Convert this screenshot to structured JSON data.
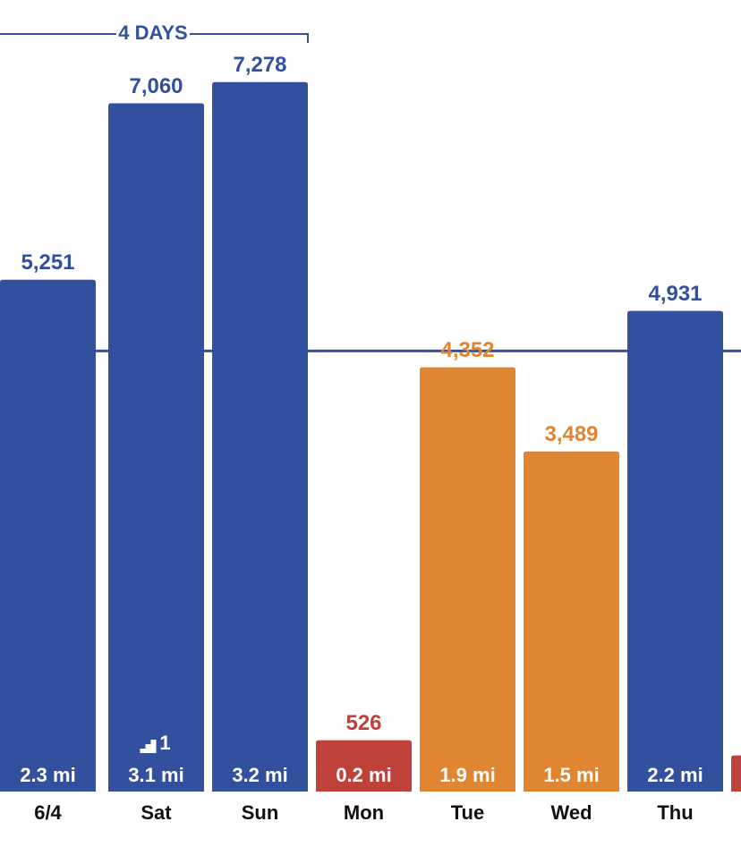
{
  "chart_data": {
    "type": "bar",
    "categories": [
      "6/4",
      "Sat",
      "Sun",
      "Mon",
      "Tue",
      "Wed",
      "Thu",
      null
    ],
    "values": [
      5251,
      7060,
      7278,
      526,
      4352,
      3489,
      4931,
      370
    ],
    "value_labels": [
      "5,251",
      "7,060",
      "7,278",
      "526",
      "4,352",
      "3,489",
      "4,931",
      null
    ],
    "distance_labels": [
      "2.3 mi",
      "3.1 mi",
      "3.2 mi",
      "0.2 mi",
      "1.9 mi",
      "1.5 mi",
      "2.2 mi",
      null
    ],
    "floors": [
      null,
      1,
      null,
      null,
      null,
      null,
      null,
      null
    ],
    "colors": [
      "#33509e",
      "#33509e",
      "#33509e",
      "#c0403a",
      "#e08633",
      "#e08633",
      "#33509e",
      "#c0403a"
    ],
    "goal": 4520,
    "streak_label": "4 DAYS",
    "ylim": [
      0,
      8120
    ]
  }
}
